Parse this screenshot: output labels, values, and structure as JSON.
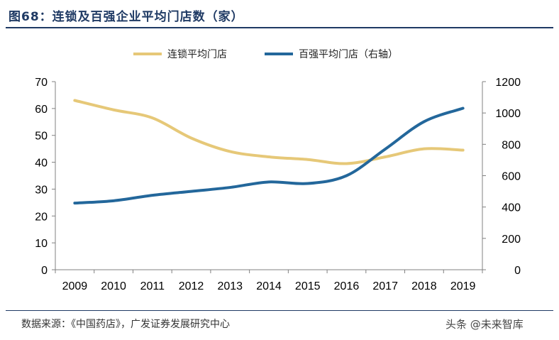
{
  "header": {
    "title": "图68：连锁及百强企业平均门店数（家）"
  },
  "footer": {
    "source": "数据来源：《中国药店》，广发证券发展研究中心",
    "watermark": "头条 @未来智库"
  },
  "colors": {
    "series1": "#e6c878",
    "series2": "#23679b",
    "axis": "#808080",
    "rule": "#1f3a64"
  },
  "chart_data": {
    "type": "line",
    "title": "图68：连锁及百强企业平均门店数（家）",
    "x": [
      "2009",
      "2010",
      "2011",
      "2012",
      "2013",
      "2014",
      "2015",
      "2016",
      "2017",
      "2018",
      "2019"
    ],
    "y_left": {
      "ylim": [
        0,
        70
      ],
      "ticks": [
        "0",
        "10",
        "20",
        "30",
        "40",
        "50",
        "60",
        "70"
      ]
    },
    "y_right": {
      "ylim": [
        0,
        1200
      ],
      "ticks": [
        "0",
        "200",
        "400",
        "600",
        "800",
        "1000",
        "1200"
      ]
    },
    "series": [
      {
        "name": "连锁平均门店",
        "axis": "left",
        "values": [
          63,
          59.5,
          56.5,
          49,
          44,
          42,
          41,
          39.5,
          42,
          45,
          44.5
        ]
      },
      {
        "name": "百强平均门店（右轴）",
        "axis": "right",
        "values": [
          425,
          440,
          475,
          500,
          525,
          560,
          550,
          600,
          770,
          945,
          1030
        ]
      }
    ],
    "legend": "top-center",
    "grid": false
  }
}
